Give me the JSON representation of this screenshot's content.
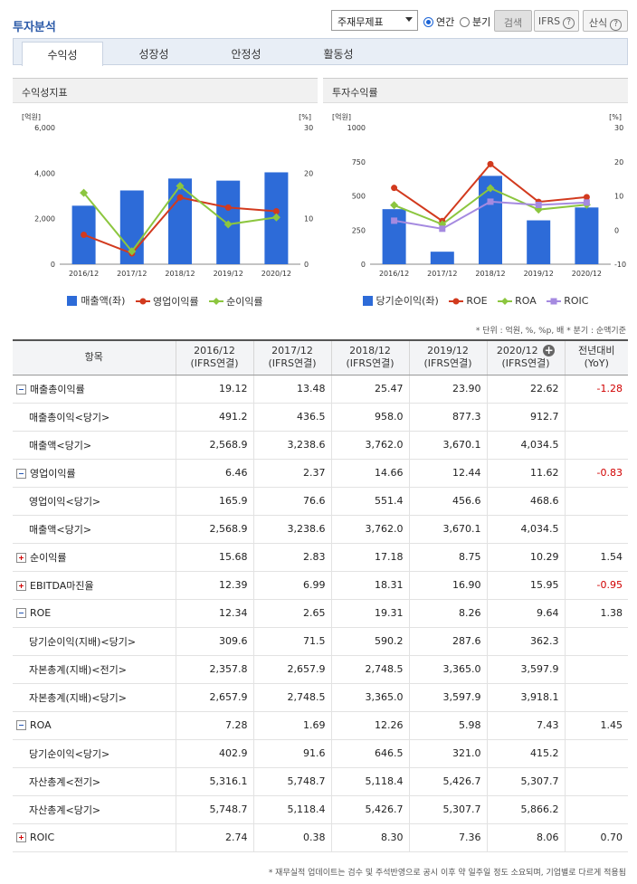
{
  "header": {
    "title": "투자분석",
    "select_value": "주재무제표",
    "radio_annual": "연간",
    "radio_quarter": "분기",
    "search_button": "검색",
    "ifrs_button": "IFRS",
    "formula_button": "산식"
  },
  "tabs": [
    "수익성",
    "성장성",
    "안정성",
    "활동성"
  ],
  "charts": {
    "left_title": "수익성지표",
    "right_title": "투자수익률",
    "left_unit_left": "[억원]",
    "left_unit_right": "[%]",
    "right_unit_left": "[억원]",
    "right_unit_right": "[%]",
    "left_legend": [
      "매출액(좌)",
      "영업이익률",
      "순이익률"
    ],
    "right_legend": [
      "당기순이익(좌)",
      "ROE",
      "ROA",
      "ROIC"
    ]
  },
  "chart_data": [
    {
      "type": "bar",
      "title": "수익성지표",
      "categories": [
        "2016/12",
        "2017/12",
        "2018/12",
        "2019/12",
        "2020/12"
      ],
      "ylim": [
        0,
        6000
      ],
      "y2lim": [
        0,
        30
      ],
      "yticks": [
        "0",
        "2,000",
        "4,000",
        "6,000"
      ],
      "y2ticks": [
        "0",
        "10",
        "20",
        "30"
      ],
      "series": [
        {
          "name": "매출액(좌)",
          "kind": "bar",
          "axis": "left",
          "color": "#2d6bd8",
          "values": [
            2568.9,
            3238.6,
            3762.0,
            3670.1,
            4034.5
          ]
        },
        {
          "name": "영업이익률",
          "kind": "line",
          "axis": "right",
          "color": "#d23a1e",
          "values": [
            6.46,
            2.37,
            14.66,
            12.44,
            11.62
          ]
        },
        {
          "name": "순이익률",
          "kind": "line",
          "axis": "right",
          "color": "#8cc63f",
          "values": [
            15.68,
            2.83,
            17.18,
            8.75,
            10.29
          ]
        }
      ]
    },
    {
      "type": "bar",
      "title": "투자수익률",
      "categories": [
        "2016/12",
        "2017/12",
        "2018/12",
        "2019/12",
        "2020/12"
      ],
      "ylim": [
        0,
        1000
      ],
      "y2lim": [
        -10,
        30
      ],
      "yticks": [
        "0",
        "250",
        "500",
        "750",
        "1000"
      ],
      "y2ticks": [
        "-10",
        "0",
        "10",
        "20",
        "30"
      ],
      "series": [
        {
          "name": "당기순이익(좌)",
          "kind": "bar",
          "axis": "left",
          "color": "#2d6bd8",
          "values": [
            402.9,
            91.6,
            646.5,
            321.0,
            415.2
          ]
        },
        {
          "name": "ROE",
          "kind": "line",
          "axis": "right",
          "color": "#d23a1e",
          "values": [
            12.34,
            2.65,
            19.31,
            8.26,
            9.64
          ]
        },
        {
          "name": "ROA",
          "kind": "line",
          "axis": "right",
          "color": "#8cc63f",
          "values": [
            7.28,
            1.69,
            12.26,
            5.98,
            7.43
          ]
        },
        {
          "name": "ROIC",
          "kind": "line",
          "axis": "right",
          "color": "#a58ae0",
          "values": [
            2.74,
            0.38,
            8.3,
            7.36,
            8.06
          ]
        }
      ]
    }
  ],
  "notes": {
    "unit": "* 단위 : 억원, %, %p, 배   * 분기 : 순액기준",
    "footer": "* 재무실적 업데이트는 검수 및 주석반영으로 공시 이후 약 일주일 정도 소요되며, 기업별로 다르게 적용됨"
  },
  "table": {
    "item_header": "항목",
    "yoy_header_1": "전년대비",
    "yoy_header_2": "(YoY)",
    "columns": [
      "2016/12",
      "2017/12",
      "2018/12",
      "2019/12",
      "2020/12"
    ],
    "column_sub": "(IFRS연결)",
    "rows": [
      {
        "label": "매출총이익률",
        "toggle": "minus",
        "values": [
          "19.12",
          "13.48",
          "25.47",
          "23.90",
          "22.62"
        ],
        "yoy": "-1.28"
      },
      {
        "label": "매출총이익<당기>",
        "toggle": "",
        "values": [
          "491.2",
          "436.5",
          "958.0",
          "877.3",
          "912.7"
        ],
        "yoy": ""
      },
      {
        "label": "매출액<당기>",
        "toggle": "",
        "values": [
          "2,568.9",
          "3,238.6",
          "3,762.0",
          "3,670.1",
          "4,034.5"
        ],
        "yoy": ""
      },
      {
        "label": "영업이익률",
        "toggle": "minus",
        "values": [
          "6.46",
          "2.37",
          "14.66",
          "12.44",
          "11.62"
        ],
        "yoy": "-0.83"
      },
      {
        "label": "영업이익<당기>",
        "toggle": "",
        "values": [
          "165.9",
          "76.6",
          "551.4",
          "456.6",
          "468.6"
        ],
        "yoy": ""
      },
      {
        "label": "매출액<당기>",
        "toggle": "",
        "values": [
          "2,568.9",
          "3,238.6",
          "3,762.0",
          "3,670.1",
          "4,034.5"
        ],
        "yoy": ""
      },
      {
        "label": "순이익률",
        "toggle": "plus",
        "values": [
          "15.68",
          "2.83",
          "17.18",
          "8.75",
          "10.29"
        ],
        "yoy": "1.54"
      },
      {
        "label": "EBITDA마진율",
        "toggle": "plus",
        "values": [
          "12.39",
          "6.99",
          "18.31",
          "16.90",
          "15.95"
        ],
        "yoy": "-0.95"
      },
      {
        "label": "ROE",
        "toggle": "minus",
        "values": [
          "12.34",
          "2.65",
          "19.31",
          "8.26",
          "9.64"
        ],
        "yoy": "1.38"
      },
      {
        "label": "당기순이익(지배)<당기>",
        "toggle": "",
        "values": [
          "309.6",
          "71.5",
          "590.2",
          "287.6",
          "362.3"
        ],
        "yoy": ""
      },
      {
        "label": "자본총계(지배)<전기>",
        "toggle": "",
        "values": [
          "2,357.8",
          "2,657.9",
          "2,748.5",
          "3,365.0",
          "3,597.9"
        ],
        "yoy": ""
      },
      {
        "label": "자본총계(지배)<당기>",
        "toggle": "",
        "values": [
          "2,657.9",
          "2,748.5",
          "3,365.0",
          "3,597.9",
          "3,918.1"
        ],
        "yoy": ""
      },
      {
        "label": "ROA",
        "toggle": "minus",
        "values": [
          "7.28",
          "1.69",
          "12.26",
          "5.98",
          "7.43"
        ],
        "yoy": "1.45"
      },
      {
        "label": "당기순이익<당기>",
        "toggle": "",
        "values": [
          "402.9",
          "91.6",
          "646.5",
          "321.0",
          "415.2"
        ],
        "yoy": ""
      },
      {
        "label": "자산총계<전기>",
        "toggle": "",
        "values": [
          "5,316.1",
          "5,748.7",
          "5,118.4",
          "5,426.7",
          "5,307.7"
        ],
        "yoy": ""
      },
      {
        "label": "자산총계<당기>",
        "toggle": "",
        "values": [
          "5,748.7",
          "5,118.4",
          "5,426.7",
          "5,307.7",
          "5,866.2"
        ],
        "yoy": ""
      },
      {
        "label": "ROIC",
        "toggle": "plus",
        "values": [
          "2.74",
          "0.38",
          "8.30",
          "7.36",
          "8.06"
        ],
        "yoy": "0.70"
      }
    ]
  }
}
